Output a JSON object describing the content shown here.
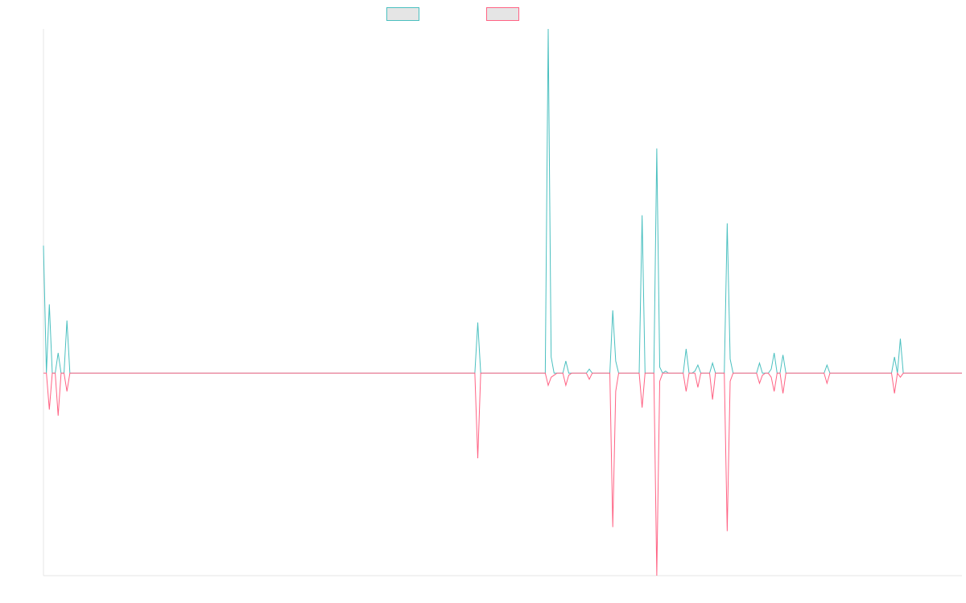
{
  "chart_data": {
    "type": "line",
    "title": "",
    "xlabel": "",
    "ylabel": "",
    "ylim": [
      -1.0,
      1.7
    ],
    "grid": false,
    "legend": {
      "placement": "top-center",
      "show_labels": false
    },
    "series": [
      {
        "color": "#4bc0c0",
        "fill": "#e5e5e5",
        "values": [
          0.63,
          0,
          0.34,
          0,
          0,
          0.1,
          0,
          0,
          0.26,
          0,
          0,
          0,
          0,
          0,
          0,
          0,
          0,
          0,
          0,
          0,
          0,
          0,
          0,
          0,
          0,
          0,
          0,
          0,
          0,
          0,
          0,
          0,
          0,
          0,
          0,
          0,
          0,
          0,
          0,
          0,
          0,
          0,
          0,
          0,
          0,
          0,
          0,
          0,
          0,
          0,
          0,
          0,
          0,
          0,
          0,
          0,
          0,
          0,
          0,
          0,
          0,
          0,
          0,
          0,
          0,
          0,
          0,
          0,
          0,
          0,
          0,
          0,
          0,
          0,
          0,
          0,
          0,
          0,
          0,
          0,
          0,
          0,
          0,
          0,
          0,
          0,
          0,
          0,
          0,
          0,
          0,
          0,
          0,
          0,
          0,
          0,
          0,
          0,
          0,
          0,
          0,
          0,
          0,
          0,
          0,
          0,
          0,
          0,
          0,
          0,
          0,
          0,
          0,
          0,
          0,
          0,
          0,
          0,
          0,
          0,
          0,
          0,
          0,
          0,
          0,
          0,
          0,
          0,
          0,
          0,
          0,
          0,
          0,
          0,
          0,
          0,
          0,
          0,
          0,
          0,
          0,
          0,
          0,
          0,
          0,
          0,
          0,
          0,
          0.25,
          0,
          0,
          0,
          0,
          0,
          0,
          0,
          0,
          0,
          0,
          0,
          0,
          0,
          0,
          0,
          0,
          0,
          0,
          0,
          0,
          0,
          0,
          0,
          1.7,
          0.08,
          0,
          0,
          0,
          0,
          0.06,
          0,
          0,
          0,
          0,
          0,
          0,
          0,
          0.02,
          0,
          0,
          0,
          0,
          0,
          0,
          0,
          0.31,
          0.06,
          0,
          0,
          0,
          0,
          0,
          0,
          0,
          0,
          0.78,
          0,
          0,
          0,
          0,
          1.11,
          0.03,
          0,
          0.01,
          0,
          0,
          0,
          0,
          0,
          0,
          0.12,
          0,
          0,
          0.01,
          0.04,
          0,
          0,
          0,
          0,
          0.05,
          0,
          0,
          0,
          0,
          0.74,
          0.07,
          0,
          0,
          0,
          0,
          0,
          0,
          0,
          0,
          0,
          0.05,
          0,
          0,
          0,
          0.02,
          0.1,
          0,
          0,
          0.09,
          0,
          0,
          0,
          0,
          0,
          0,
          0,
          0,
          0,
          0,
          0,
          0,
          0,
          0,
          0.04,
          0,
          0,
          0,
          0,
          0,
          0,
          0,
          0,
          0,
          0,
          0,
          0,
          0,
          0,
          0,
          0,
          0,
          0,
          0,
          0,
          0,
          0,
          0.08,
          0,
          0.17,
          0,
          0,
          0,
          0,
          0,
          0,
          0,
          0,
          0,
          0,
          0,
          0,
          0,
          0,
          0,
          0,
          0,
          0,
          0,
          0,
          0
        ]
      },
      {
        "color": "#ff6384",
        "fill": "#e5e5e5",
        "values": [
          0,
          0,
          -0.18,
          0,
          0,
          -0.21,
          0,
          0,
          -0.09,
          0,
          0,
          0,
          0,
          0,
          0,
          0,
          0,
          0,
          0,
          0,
          0,
          0,
          0,
          0,
          0,
          0,
          0,
          0,
          0,
          0,
          0,
          0,
          0,
          0,
          0,
          0,
          0,
          0,
          0,
          0,
          0,
          0,
          0,
          0,
          0,
          0,
          0,
          0,
          0,
          0,
          0,
          0,
          0,
          0,
          0,
          0,
          0,
          0,
          0,
          0,
          0,
          0,
          0,
          0,
          0,
          0,
          0,
          0,
          0,
          0,
          0,
          0,
          0,
          0,
          0,
          0,
          0,
          0,
          0,
          0,
          0,
          0,
          0,
          0,
          0,
          0,
          0,
          0,
          0,
          0,
          0,
          0,
          0,
          0,
          0,
          0,
          0,
          0,
          0,
          0,
          0,
          0,
          0,
          0,
          0,
          0,
          0,
          0,
          0,
          0,
          0,
          0,
          0,
          0,
          0,
          0,
          0,
          0,
          0,
          0,
          0,
          0,
          0,
          0,
          0,
          0,
          0,
          0,
          0,
          0,
          0,
          0,
          0,
          0,
          0,
          0,
          0,
          0,
          0,
          0,
          0,
          0,
          0,
          0,
          0,
          0,
          0,
          0,
          -0.42,
          0,
          0,
          0,
          0,
          0,
          0,
          0,
          0,
          0,
          0,
          0,
          0,
          0,
          0,
          0,
          0,
          0,
          0,
          0,
          0,
          0,
          0,
          0,
          -0.06,
          -0.02,
          -0.01,
          0,
          0,
          0,
          -0.06,
          -0.01,
          0,
          0,
          0,
          0,
          0,
          0,
          -0.03,
          0,
          0,
          0,
          0,
          0,
          0,
          0,
          -0.76,
          -0.09,
          0,
          0,
          0,
          0,
          0,
          0,
          0,
          0,
          -0.17,
          0,
          0,
          0,
          0,
          -1.0,
          -0.04,
          0,
          0,
          0,
          0,
          0,
          0,
          0,
          0,
          -0.09,
          0,
          0,
          0,
          -0.07,
          0,
          0,
          0,
          0,
          -0.13,
          0,
          0,
          0,
          0,
          -0.78,
          -0.04,
          0,
          0,
          0,
          0,
          0,
          0,
          0,
          0,
          0,
          -0.05,
          -0.01,
          0,
          0,
          -0.02,
          -0.09,
          0,
          0,
          -0.1,
          0,
          0,
          0,
          0,
          0,
          0,
          0,
          0,
          0,
          0,
          0,
          0,
          0,
          0,
          -0.05,
          0,
          0,
          0,
          0,
          0,
          0,
          0,
          0,
          0,
          0,
          0,
          0,
          0,
          0,
          0,
          0,
          0,
          0,
          0,
          0,
          0,
          0,
          -0.1,
          0,
          -0.02,
          0,
          0,
          0,
          0,
          0,
          0,
          0,
          0,
          0,
          0,
          0,
          0,
          0,
          0,
          0,
          0,
          0,
          0,
          0,
          0,
          0
        ]
      }
    ]
  }
}
